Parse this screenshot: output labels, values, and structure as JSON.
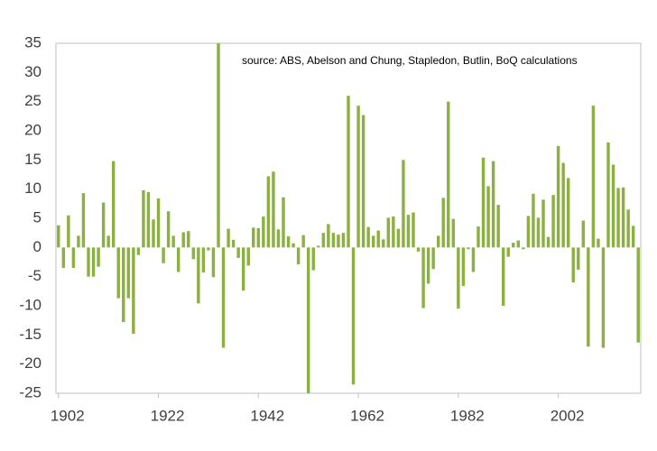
{
  "chart_data": {
    "type": "bar",
    "annotation": "source:  ABS, Abelson and Chung, Stapledon, Butlin, BoQ calculations",
    "x": [
      1902,
      1903,
      1904,
      1905,
      1906,
      1907,
      1908,
      1909,
      1910,
      1911,
      1912,
      1913,
      1914,
      1915,
      1916,
      1917,
      1918,
      1919,
      1920,
      1921,
      1922,
      1923,
      1924,
      1925,
      1926,
      1927,
      1928,
      1929,
      1930,
      1931,
      1932,
      1933,
      1934,
      1935,
      1936,
      1937,
      1938,
      1939,
      1940,
      1941,
      1942,
      1943,
      1944,
      1945,
      1946,
      1947,
      1948,
      1949,
      1950,
      1951,
      1952,
      1953,
      1954,
      1955,
      1956,
      1957,
      1958,
      1959,
      1960,
      1961,
      1962,
      1963,
      1964,
      1965,
      1966,
      1967,
      1968,
      1969,
      1970,
      1971,
      1972,
      1973,
      1974,
      1975,
      1976,
      1977,
      1978,
      1979,
      1980,
      1981,
      1982,
      1983,
      1984,
      1985,
      1986,
      1987,
      1988,
      1989,
      1990,
      1991,
      1992,
      1993,
      1994,
      1995,
      1996,
      1997,
      1998,
      1999,
      2000,
      2001,
      2002,
      2003,
      2004,
      2005,
      2006,
      2007,
      2008,
      2009,
      2010,
      2011,
      2012,
      2013,
      2014,
      2015,
      2016,
      2017,
      2018
    ],
    "values": [
      3.8,
      -3.5,
      5.5,
      -3.5,
      2,
      9.3,
      -5,
      -5,
      -3.3,
      7.7,
      2,
      14.8,
      -8.7,
      -12.8,
      -8.7,
      -14.8,
      -1.3,
      9.8,
      9.5,
      4.8,
      8.4,
      -2.7,
      6.2,
      2,
      -4.2,
      2.6,
      2.8,
      -2,
      -9.6,
      -4.3,
      -0.5,
      -5.1,
      35,
      -17.2,
      3.2,
      1.3,
      -1.8,
      -7.4,
      -3.1,
      3.4,
      3.3,
      5.3,
      12.2,
      13,
      3.1,
      8.6,
      1.9,
      0.7,
      -2.9,
      2.1,
      -25,
      -3.9,
      0.3,
      2.5,
      4,
      2.5,
      2.2,
      2.5,
      26,
      -23.5,
      24.3,
      22.7,
      3.5,
      2,
      2.9,
      1.4,
      5.1,
      5.3,
      3.2,
      15,
      5.6,
      6,
      -0.7,
      -10.4,
      -6.2,
      -3.7,
      2,
      8.5,
      25,
      4.9,
      -10.5,
      -6.6,
      -0.3,
      -4.2,
      3.6,
      15.4,
      10.5,
      14.8,
      7.3,
      -10,
      -1.6,
      0.8,
      1.2,
      -0.3,
      5.4,
      9.2,
      5.1,
      8.2,
      1.8,
      9,
      17.4,
      14.5,
      11.9,
      -6,
      -3.8,
      4.6,
      -17,
      24.3,
      1.5,
      -17.2,
      18,
      14.2,
      10.2,
      10.3,
      6.5,
      3.7,
      -16.3
    ],
    "color": "#8db042",
    "xlim": [
      1901.5,
      2018.5
    ],
    "xticks": [
      1902,
      1922,
      1942,
      1962,
      1982,
      2002
    ],
    "ylim": [
      -25,
      35
    ],
    "yticks": [
      -25,
      -20,
      -15,
      -10,
      -5,
      0,
      5,
      10,
      15,
      20,
      25,
      30,
      35
    ]
  }
}
